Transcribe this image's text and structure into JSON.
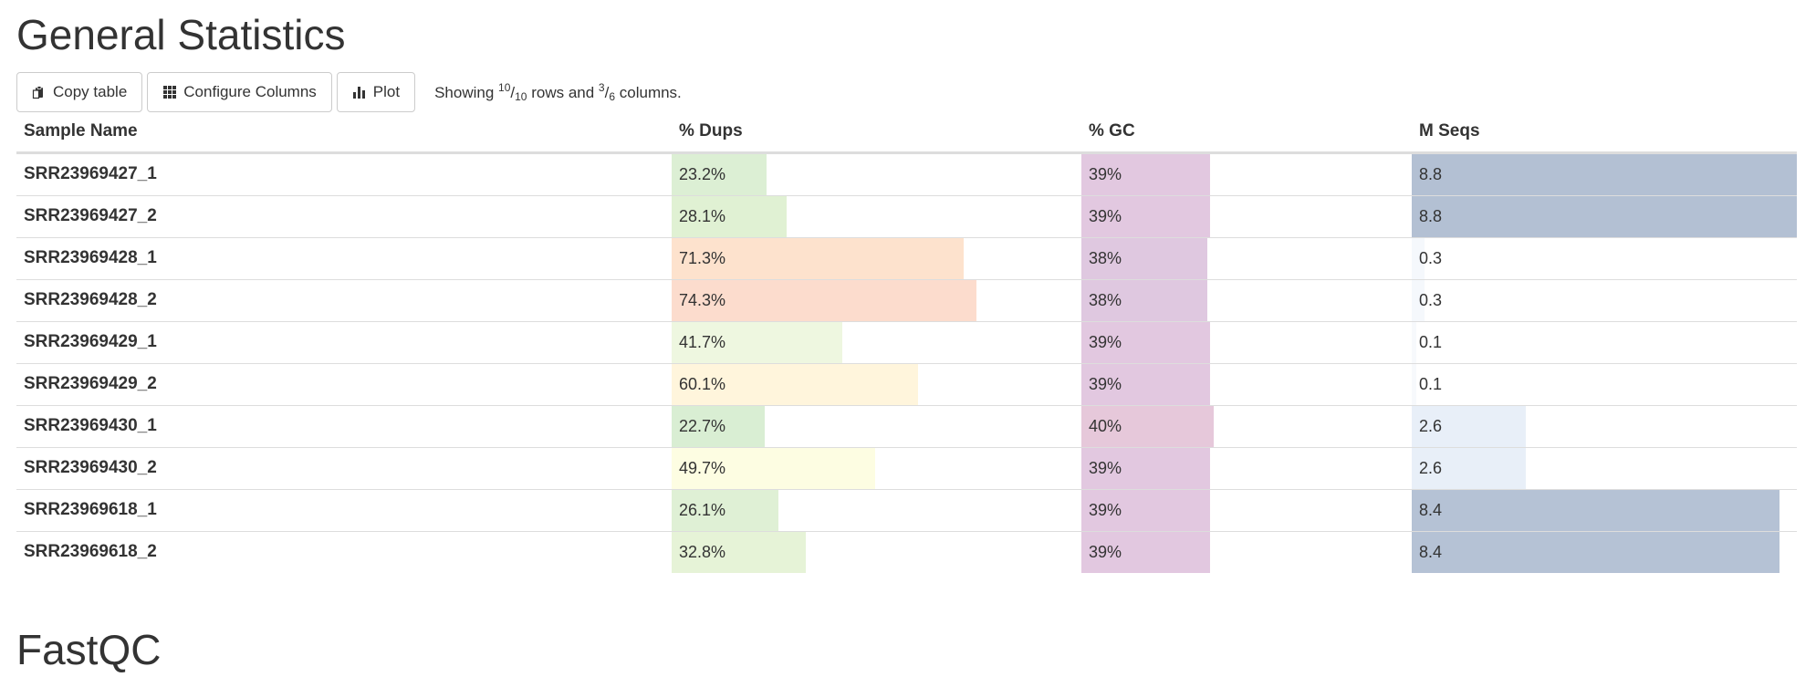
{
  "section_title": "General Statistics",
  "next_section_title": "FastQC",
  "toolbar": {
    "copy_label": "Copy table",
    "configure_label": "Configure Columns",
    "plot_label": "Plot",
    "copy_icon": "clipboard-icon",
    "configure_icon": "grid-icon",
    "plot_icon": "bar-chart-icon",
    "showing": {
      "prefix": "Showing ",
      "rows_shown": "10",
      "rows_total": "10",
      "middle": " rows and ",
      "cols_shown": "3",
      "cols_total": "6",
      "suffix": " columns."
    }
  },
  "table": {
    "headers": {
      "sample": "Sample Name",
      "dups": "% Dups",
      "gc": "% GC",
      "mseqs": "M Seqs"
    },
    "scales": {
      "dups_max": 100,
      "gc_max": 100,
      "mseqs_max": 8.8
    },
    "rows": [
      {
        "sample": "SRR23969427_1",
        "dups": 23.2,
        "dups_label": "23.2%",
        "dups_color": "#dcefd4",
        "gc": 39,
        "gc_label": "39%",
        "gc_color": "#e2c8e0",
        "mseqs": 8.8,
        "mseqs_label": "8.8",
        "mseqs_color": "#b3c0d3"
      },
      {
        "sample": "SRR23969427_2",
        "dups": 28.1,
        "dups_label": "28.1%",
        "dups_color": "#e0f1d3",
        "gc": 39,
        "gc_label": "39%",
        "gc_color": "#e2c8e0",
        "mseqs": 8.8,
        "mseqs_label": "8.8",
        "mseqs_color": "#b3c0d3"
      },
      {
        "sample": "SRR23969428_1",
        "dups": 71.3,
        "dups_label": "71.3%",
        "dups_color": "#fde2cd",
        "gc": 38,
        "gc_label": "38%",
        "gc_color": "#dfc8e0",
        "mseqs": 0.3,
        "mseqs_label": "0.3",
        "mseqs_color": "#f5f8fc"
      },
      {
        "sample": "SRR23969428_2",
        "dups": 74.3,
        "dups_label": "74.3%",
        "dups_color": "#fcdccd",
        "gc": 38,
        "gc_label": "38%",
        "gc_color": "#dfc8e0",
        "mseqs": 0.3,
        "mseqs_label": "0.3",
        "mseqs_color": "#f5f8fc"
      },
      {
        "sample": "SRR23969429_1",
        "dups": 41.7,
        "dups_label": "41.7%",
        "dups_color": "#eef7e0",
        "gc": 39,
        "gc_label": "39%",
        "gc_color": "#e2c8e0",
        "mseqs": 0.1,
        "mseqs_label": "0.1",
        "mseqs_color": "#f7f9fc"
      },
      {
        "sample": "SRR23969429_2",
        "dups": 60.1,
        "dups_label": "60.1%",
        "dups_color": "#fff5dc",
        "gc": 39,
        "gc_label": "39%",
        "gc_color": "#e2c8e0",
        "mseqs": 0.1,
        "mseqs_label": "0.1",
        "mseqs_color": "#f7f9fc"
      },
      {
        "sample": "SRR23969430_1",
        "dups": 22.7,
        "dups_label": "22.7%",
        "dups_color": "#d9eed3",
        "gc": 40,
        "gc_label": "40%",
        "gc_color": "#e6c8da",
        "mseqs": 2.6,
        "mseqs_label": "2.6",
        "mseqs_color": "#e8eff8"
      },
      {
        "sample": "SRR23969430_2",
        "dups": 49.7,
        "dups_label": "49.7%",
        "dups_color": "#fdfde2",
        "gc": 39,
        "gc_label": "39%",
        "gc_color": "#e2c8e0",
        "mseqs": 2.6,
        "mseqs_label": "2.6",
        "mseqs_color": "#e8eff8"
      },
      {
        "sample": "SRR23969618_1",
        "dups": 26.1,
        "dups_label": "26.1%",
        "dups_color": "#dff0d5",
        "gc": 39,
        "gc_label": "39%",
        "gc_color": "#e2c8e0",
        "mseqs": 8.4,
        "mseqs_label": "8.4",
        "mseqs_color": "#b5c2d5"
      },
      {
        "sample": "SRR23969618_2",
        "dups": 32.8,
        "dups_label": "32.8%",
        "dups_color": "#e6f3d7",
        "gc": 39,
        "gc_label": "39%",
        "gc_color": "#e2c8e0",
        "mseqs": 8.4,
        "mseqs_label": "8.4",
        "mseqs_color": "#b5c2d5"
      }
    ]
  }
}
